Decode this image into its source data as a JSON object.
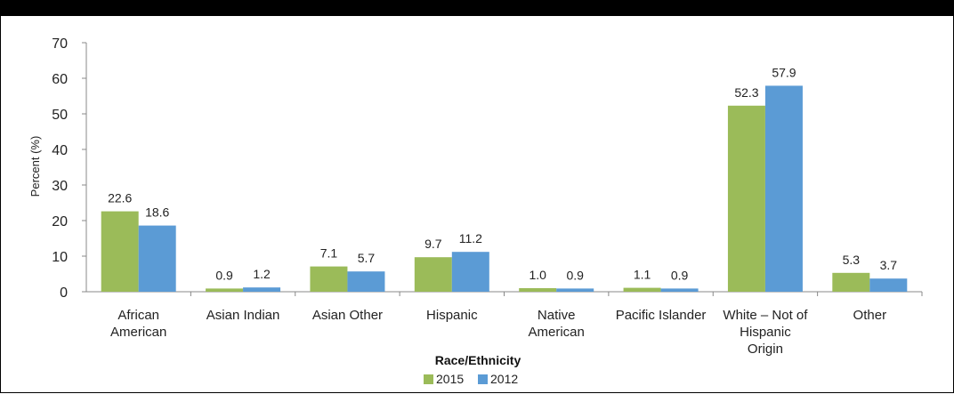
{
  "chart_data": {
    "type": "bar",
    "title": "",
    "xlabel": "Race/Ethnicity",
    "ylabel": "Percent (%)",
    "ylim": [
      0,
      70
    ],
    "yticks": [
      0,
      10,
      20,
      30,
      40,
      50,
      60,
      70
    ],
    "grid": false,
    "legend_position": "bottom",
    "categories": [
      [
        "African",
        "American"
      ],
      [
        "Asian Indian"
      ],
      [
        "Asian Other"
      ],
      [
        "Hispanic"
      ],
      [
        "Native",
        "American"
      ],
      [
        "Pacific Islander"
      ],
      [
        "White – Not of",
        "Hispanic",
        "Origin"
      ],
      [
        "Other"
      ]
    ],
    "series": [
      {
        "name": "2015",
        "color": "#9bbb59",
        "values": [
          22.6,
          0.9,
          7.1,
          9.7,
          1.0,
          1.1,
          52.3,
          5.3
        ]
      },
      {
        "name": "2012",
        "color": "#5b9bd5",
        "values": [
          18.6,
          1.2,
          5.7,
          11.2,
          0.9,
          0.9,
          57.9,
          3.7
        ]
      }
    ]
  }
}
